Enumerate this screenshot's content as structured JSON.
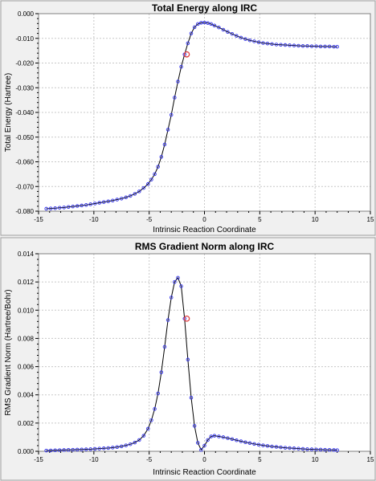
{
  "chart_data": [
    {
      "type": "line",
      "title": "Total Energy along IRC",
      "xlabel": "Intrinsic Reaction Coordinate",
      "ylabel": "Total Energy (Hartree)",
      "xlim": [
        -15,
        15
      ],
      "ylim": [
        -0.08,
        0.0
      ],
      "xticks": [
        -15,
        -10,
        -5,
        0,
        5,
        10,
        15
      ],
      "xtick_labels": [
        "-15",
        "-10",
        "-5",
        "0",
        "5",
        "10",
        "15"
      ],
      "yticks": [
        0.0,
        -0.01,
        -0.02,
        -0.03,
        -0.04,
        -0.05,
        -0.06,
        -0.07,
        -0.08
      ],
      "ytick_labels": [
        "0.000",
        "-0.010",
        "-0.020",
        "-0.030",
        "-0.040",
        "-0.050",
        "-0.060",
        "-0.070",
        "-0.080"
      ],
      "grid": true,
      "series": [
        {
          "x": [
            -14.3,
            -13.9,
            -13.5,
            -13.1,
            -12.7,
            -12.3,
            -11.9,
            -11.5,
            -11.1,
            -10.7,
            -10.3,
            -9.9,
            -9.5,
            -9.1,
            -8.7,
            -8.3,
            -7.9,
            -7.5,
            -7.1,
            -6.7,
            -6.3,
            -5.9,
            -5.5,
            -5.1,
            -4.8,
            -4.5,
            -4.2,
            -3.9,
            -3.6,
            -3.3,
            -3.0,
            -2.7,
            -2.4,
            -2.1,
            -1.8,
            -1.5,
            -1.2,
            -0.9,
            -0.6,
            -0.3,
            0.0,
            0.3,
            0.6,
            0.9,
            1.3,
            1.7,
            2.1,
            2.5,
            2.9,
            3.3,
            3.7,
            4.1,
            4.5,
            4.9,
            5.3,
            5.7,
            6.1,
            6.5,
            6.9,
            7.3,
            7.7,
            8.1,
            8.5,
            8.9,
            9.3,
            9.7,
            10.1,
            10.5,
            10.9,
            11.3,
            11.7,
            12.0
          ],
          "y": [
            -0.079,
            -0.0789,
            -0.0788,
            -0.0786,
            -0.0785,
            -0.0783,
            -0.0781,
            -0.0779,
            -0.0777,
            -0.0775,
            -0.0772,
            -0.0769,
            -0.0766,
            -0.0763,
            -0.076,
            -0.0757,
            -0.0753,
            -0.0749,
            -0.0744,
            -0.0738,
            -0.073,
            -0.072,
            -0.0706,
            -0.069,
            -0.0672,
            -0.065,
            -0.062,
            -0.058,
            -0.053,
            -0.047,
            -0.041,
            -0.034,
            -0.0275,
            -0.0215,
            -0.0165,
            -0.012,
            -0.008,
            -0.0055,
            -0.0042,
            -0.0037,
            -0.0036,
            -0.0038,
            -0.0042,
            -0.0048,
            -0.0056,
            -0.0065,
            -0.0074,
            -0.0082,
            -0.009,
            -0.0097,
            -0.0103,
            -0.0108,
            -0.0112,
            -0.0116,
            -0.0119,
            -0.0121,
            -0.0123,
            -0.0125,
            -0.0126,
            -0.0127,
            -0.0128,
            -0.0129,
            -0.013,
            -0.0131,
            -0.0131,
            -0.0132,
            -0.0132,
            -0.0133,
            -0.0133,
            -0.0133,
            -0.0134,
            -0.0134
          ]
        }
      ],
      "highlight": {
        "x": -1.6,
        "y": -0.0165,
        "color": "#e04040"
      },
      "colors": {
        "markers": "#3333ee",
        "line": "#000000",
        "highlight": "#e04040",
        "plot_bg": "#ffffff",
        "grid": "#c8c8c8"
      }
    },
    {
      "type": "line",
      "title": "RMS Gradient Norm along IRC",
      "xlabel": "Intrinsic Reaction Coordinate",
      "ylabel": "RMS Gradient Norm (Hartree/Bohr)",
      "xlim": [
        -15,
        15
      ],
      "ylim": [
        0.0,
        0.014
      ],
      "xticks": [
        -15,
        -10,
        -5,
        0,
        5,
        10,
        15
      ],
      "xtick_labels": [
        "-15",
        "-10",
        "-5",
        "0",
        "5",
        "10",
        "15"
      ],
      "yticks": [
        0.014,
        0.012,
        0.01,
        0.008,
        0.006,
        0.004,
        0.002,
        0.0
      ],
      "ytick_labels": [
        "0.014",
        "0.012",
        "0.010",
        "0.008",
        "0.006",
        "0.004",
        "0.002",
        "0.000"
      ],
      "grid": true,
      "series": [
        {
          "x": [
            -14.3,
            -13.9,
            -13.5,
            -13.1,
            -12.7,
            -12.3,
            -11.9,
            -11.5,
            -11.1,
            -10.7,
            -10.3,
            -9.9,
            -9.5,
            -9.1,
            -8.7,
            -8.3,
            -7.9,
            -7.5,
            -7.1,
            -6.7,
            -6.3,
            -5.9,
            -5.5,
            -5.1,
            -4.8,
            -4.5,
            -4.2,
            -3.9,
            -3.6,
            -3.3,
            -3.0,
            -2.7,
            -2.4,
            -2.1,
            -1.8,
            -1.5,
            -1.2,
            -0.9,
            -0.6,
            -0.3,
            0.0,
            0.3,
            0.6,
            0.9,
            1.3,
            1.7,
            2.1,
            2.5,
            2.9,
            3.3,
            3.7,
            4.1,
            4.5,
            4.9,
            5.3,
            5.7,
            6.1,
            6.5,
            6.9,
            7.3,
            7.7,
            8.1,
            8.5,
            8.9,
            9.3,
            9.7,
            10.1,
            10.5,
            10.9,
            11.3,
            11.7,
            12.0
          ],
          "y": [
            5e-05,
            6e-05,
            7e-05,
            8e-05,
            9e-05,
            0.0001,
            0.00011,
            0.00012,
            0.00013,
            0.00014,
            0.00015,
            0.00017,
            0.00019,
            0.00021,
            0.00023,
            0.00026,
            0.0003,
            0.00035,
            0.00042,
            0.0005,
            0.00062,
            0.0008,
            0.0011,
            0.0016,
            0.0022,
            0.003,
            0.0041,
            0.0056,
            0.0074,
            0.0093,
            0.0109,
            0.012,
            0.0123,
            0.0117,
            0.0094,
            0.0065,
            0.0038,
            0.0018,
            0.0006,
            0.0001,
            0.0004,
            0.0008,
            0.00105,
            0.0011,
            0.00105,
            0.001,
            0.00093,
            0.00086,
            0.00078,
            0.00071,
            0.00064,
            0.00058,
            0.00052,
            0.00047,
            0.00042,
            0.00038,
            0.00034,
            0.00031,
            0.00028,
            0.00025,
            0.00023,
            0.00021,
            0.00019,
            0.00017,
            0.00015,
            0.00014,
            0.00013,
            0.00012,
            0.00011,
            0.0001,
            9e-05,
            8e-05
          ]
        }
      ],
      "highlight": {
        "x": -1.6,
        "y": 0.0094,
        "color": "#e04040"
      },
      "colors": {
        "markers": "#3333ee",
        "line": "#000000",
        "highlight": "#e04040",
        "plot_bg": "#ffffff",
        "grid": "#c8c8c8"
      }
    }
  ]
}
